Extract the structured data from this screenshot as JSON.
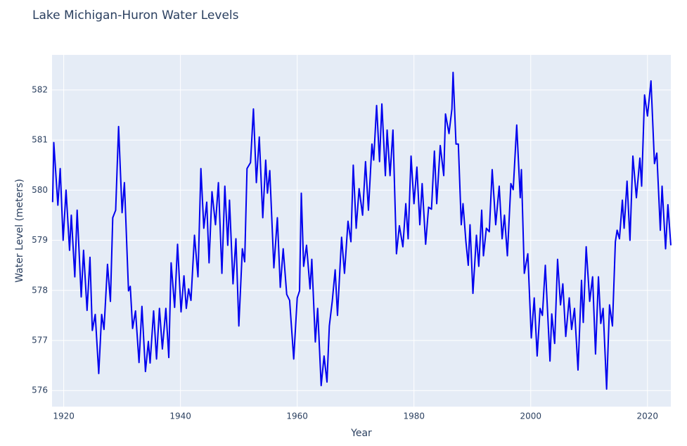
{
  "chart_data": {
    "type": "line",
    "title": "Lake Michigan-Huron Water Levels",
    "x_label": "Year",
    "y_label": "Water Level (meters)",
    "x": [
      1918.1,
      1918.3,
      1919.0,
      1919.4,
      1919.9,
      1920.4,
      1921.0,
      1921.3,
      1921.9,
      1922.3,
      1923.0,
      1923.4,
      1924.0,
      1924.5,
      1924.9,
      1925.4,
      1926.0,
      1926.5,
      1926.9,
      1927.5,
      1928.0,
      1928.4,
      1928.9,
      1929.4,
      1930.0,
      1930.4,
      1931.1,
      1931.4,
      1931.8,
      1932.3,
      1932.9,
      1933.4,
      1934.0,
      1934.5,
      1934.8,
      1935.4,
      1935.9,
      1936.4,
      1936.9,
      1937.5,
      1938.0,
      1938.4,
      1939.0,
      1939.5,
      1940.1,
      1940.6,
      1941.0,
      1941.4,
      1941.8,
      1942.4,
      1943.0,
      1943.5,
      1944.0,
      1944.5,
      1944.9,
      1945.4,
      1946.0,
      1946.5,
      1947.1,
      1947.6,
      1948.1,
      1948.4,
      1949.0,
      1949.5,
      1950.0,
      1950.6,
      1951.0,
      1951.4,
      1952.0,
      1952.5,
      1953.0,
      1953.5,
      1954.1,
      1954.6,
      1954.9,
      1955.3,
      1956.0,
      1956.6,
      1957.1,
      1957.6,
      1958.2,
      1958.7,
      1959.4,
      1960.0,
      1960.4,
      1960.7,
      1961.1,
      1961.6,
      1962.2,
      1962.5,
      1963.1,
      1963.5,
      1964.1,
      1964.6,
      1965.1,
      1965.5,
      1966.0,
      1966.5,
      1966.9,
      1967.6,
      1968.1,
      1968.7,
      1969.2,
      1969.6,
      1970.1,
      1970.6,
      1971.2,
      1971.7,
      1972.2,
      1972.8,
      1973.1,
      1973.6,
      1974.1,
      1974.5,
      1975.1,
      1975.4,
      1975.9,
      1976.4,
      1977.0,
      1977.5,
      1978.1,
      1978.6,
      1979.0,
      1979.5,
      1980.0,
      1980.5,
      1981.0,
      1981.4,
      1982.0,
      1982.5,
      1983.0,
      1983.5,
      1983.9,
      1984.5,
      1985.1,
      1985.4,
      1986.0,
      1986.5,
      1986.7,
      1987.2,
      1987.6,
      1988.1,
      1988.4,
      1988.9,
      1989.3,
      1989.6,
      1990.1,
      1990.7,
      1991.1,
      1991.6,
      1991.9,
      1992.4,
      1992.9,
      1993.4,
      1994.0,
      1994.6,
      1995.1,
      1995.5,
      1996.0,
      1996.6,
      1997.0,
      1997.6,
      1998.2,
      1998.4,
      1998.9,
      1999.5,
      2000.1,
      2000.6,
      2001.1,
      2001.6,
      2002.0,
      2002.5,
      2003.3,
      2003.6,
      2004.1,
      2004.6,
      2005.1,
      2005.5,
      2006.0,
      2006.6,
      2007.0,
      2007.5,
      2008.1,
      2008.7,
      2009.0,
      2009.5,
      2010.1,
      2010.6,
      2011.1,
      2011.6,
      2012.0,
      2012.4,
      2013.0,
      2013.5,
      2014.0,
      2014.5,
      2014.8,
      2015.2,
      2015.7,
      2016.0,
      2016.5,
      2017.0,
      2017.5,
      2018.1,
      2018.7,
      2019.0,
      2019.5,
      2020.0,
      2020.6,
      2021.2,
      2021.6,
      2022.2,
      2022.5,
      2023.1,
      2023.5,
      2024.0
    ],
    "series": [
      {
        "name": "Water Level",
        "color": "#0000ee",
        "values": [
          579.76,
          580.95,
          579.7,
          580.43,
          579.0,
          580.0,
          578.8,
          579.5,
          578.27,
          579.6,
          577.87,
          578.8,
          577.6,
          578.66,
          577.2,
          577.52,
          576.34,
          577.52,
          577.22,
          578.52,
          577.78,
          579.45,
          579.6,
          581.27,
          579.55,
          580.15,
          577.99,
          578.08,
          577.24,
          577.59,
          576.56,
          577.68,
          576.38,
          576.98,
          576.55,
          577.59,
          576.63,
          577.64,
          576.83,
          577.64,
          576.66,
          578.55,
          577.66,
          578.92,
          577.57,
          578.29,
          577.64,
          578.03,
          577.8,
          579.1,
          578.27,
          580.43,
          579.24,
          579.76,
          578.55,
          579.97,
          579.31,
          580.15,
          578.34,
          580.08,
          578.9,
          579.8,
          578.13,
          579.03,
          577.29,
          578.83,
          578.57,
          580.43,
          580.55,
          581.62,
          580.15,
          581.06,
          579.45,
          580.6,
          579.94,
          580.39,
          578.45,
          579.45,
          578.06,
          578.83,
          577.92,
          577.8,
          576.63,
          577.85,
          577.99,
          579.94,
          578.48,
          578.9,
          578.03,
          578.62,
          576.97,
          577.64,
          576.1,
          576.69,
          576.17,
          577.29,
          577.78,
          578.41,
          577.5,
          579.06,
          578.34,
          579.38,
          578.97,
          580.5,
          579.24,
          580.03,
          579.5,
          580.57,
          579.6,
          580.92,
          580.6,
          581.69,
          580.57,
          581.72,
          580.29,
          581.2,
          580.29,
          581.2,
          578.73,
          579.29,
          578.87,
          579.73,
          579.03,
          580.68,
          579.73,
          580.46,
          579.31,
          580.13,
          578.92,
          579.66,
          579.62,
          580.78,
          579.73,
          580.89,
          580.29,
          581.52,
          581.13,
          581.62,
          582.35,
          580.92,
          580.92,
          579.31,
          579.73,
          578.97,
          578.5,
          579.31,
          577.94,
          579.1,
          578.48,
          579.6,
          578.69,
          579.24,
          579.17,
          580.41,
          579.31,
          580.08,
          579.03,
          579.5,
          578.69,
          580.13,
          580.01,
          581.3,
          579.85,
          580.41,
          578.34,
          578.73,
          577.05,
          577.85,
          576.69,
          577.64,
          577.5,
          578.5,
          576.59,
          577.53,
          576.94,
          578.62,
          577.71,
          578.13,
          577.08,
          577.85,
          577.22,
          577.64,
          576.41,
          578.2,
          577.36,
          578.87,
          577.78,
          578.27,
          576.73,
          578.27,
          577.34,
          577.64,
          576.03,
          577.71,
          577.29,
          578.97,
          579.2,
          579.03,
          579.8,
          579.24,
          580.18,
          579.0,
          580.68,
          579.85,
          580.64,
          580.08,
          581.9,
          581.48,
          582.18,
          580.53,
          580.74,
          579.2,
          580.08,
          578.83,
          579.71,
          578.9
        ]
      }
    ],
    "xlim": [
      1918,
      2024
    ],
    "ylim": [
      575.68,
      582.7
    ],
    "xticks": [
      1920,
      1940,
      1960,
      1980,
      2000,
      2020
    ],
    "yticks": [
      576,
      577,
      578,
      579,
      580,
      581,
      582
    ],
    "grid": true
  }
}
